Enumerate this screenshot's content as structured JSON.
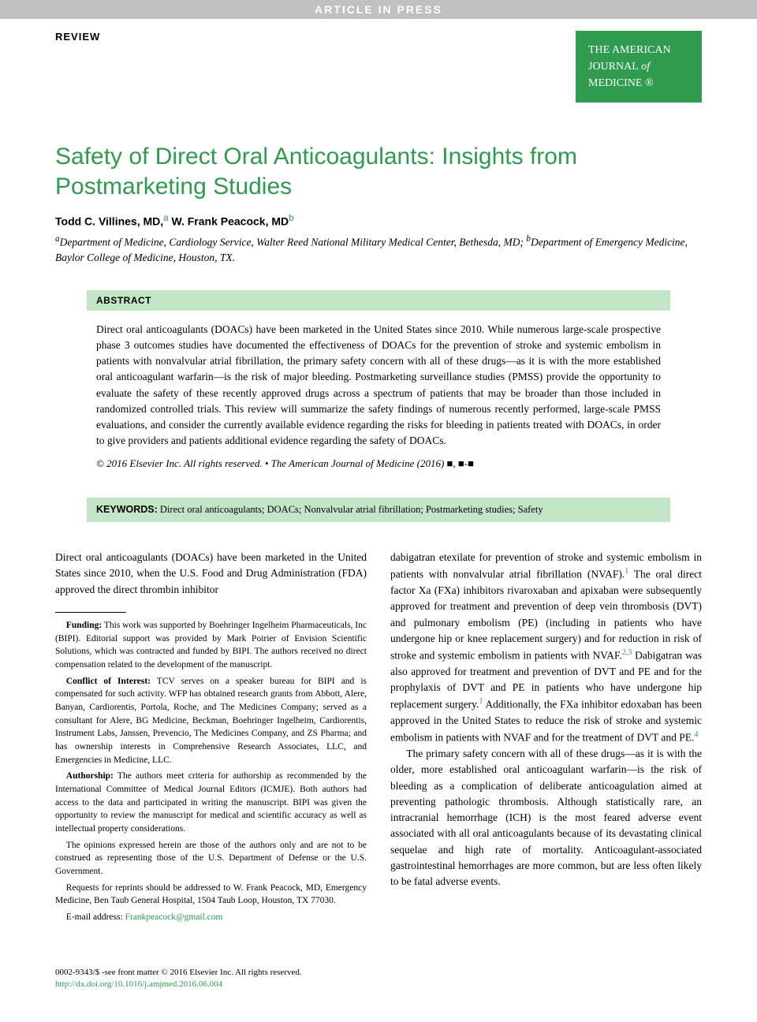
{
  "banner": "ARTICLE IN PRESS",
  "review_label": "REVIEW",
  "journal_badge": {
    "line1": "THE AMERICAN",
    "line2_a": "JOURNAL",
    "line2_b": "of",
    "line3": "MEDICINE",
    "reg": "®"
  },
  "title": "Safety of Direct Oral Anticoagulants: Insights from Postmarketing Studies",
  "authors": {
    "a1_name": "Todd C. Villines, MD,",
    "a1_sup": "a",
    "a2_name": "W. Frank Peacock, MD",
    "a2_sup": "b"
  },
  "affiliations": {
    "a_sup": "a",
    "a_text": "Department of Medicine, Cardiology Service, Walter Reed National Military Medical Center, Bethesda, MD;",
    "b_sup": "b",
    "b_text": "Department of Emergency Medicine, Baylor College of Medicine, Houston, TX."
  },
  "abstract": {
    "header": "ABSTRACT",
    "body": "Direct oral anticoagulants (DOACs) have been marketed in the United States since 2010. While numerous large-scale prospective phase 3 outcomes studies have documented the effectiveness of DOACs for the prevention of stroke and systemic embolism in patients with nonvalvular atrial fibrillation, the primary safety concern with all of these drugs—as it is with the more established oral anticoagulant warfarin—is the risk of major bleeding. Postmarketing surveillance studies (PMSS) provide the opportunity to evaluate the safety of these recently approved drugs across a spectrum of patients that may be broader than those included in randomized controlled trials. This review will summarize the safety findings of numerous recently performed, large-scale PMSS evaluations, and consider the currently available evidence regarding the risks for bleeding in patients treated with DOACs, in order to give providers and patients additional evidence regarding the safety of DOACs.",
    "copyright": "© 2016 Elsevier Inc. All rights reserved. • The American Journal of Medicine (2016) ■, ■-■"
  },
  "keywords": {
    "label": "KEYWORDS:",
    "text": "Direct oral anticoagulants; DOACs; Nonvalvular atrial fibrillation; Postmarketing studies; Safety"
  },
  "body": {
    "left_intro": "Direct oral anticoagulants (DOACs) have been marketed in the United States since 2010, when the U.S. Food and Drug Administration (FDA) approved the direct thrombin inhibitor",
    "right_p1_a": "dabigatran etexilate for prevention of stroke and systemic embolism in patients with nonvalvular atrial fibrillation (NVAF).",
    "right_p1_ref1": "1",
    "right_p1_b": " The oral direct factor Xa (FXa) inhibitors rivaroxaban and apixaban were subsequently approved for treatment and prevention of deep vein thrombosis (DVT) and pulmonary embolism (PE) (including in patients who have undergone hip or knee replacement surgery) and for reduction in risk of stroke and systemic embolism in patients with NVAF.",
    "right_p1_ref23": "2,3",
    "right_p1_c": " Dabigatran was also approved for treatment and prevention of DVT and PE and for the prophylaxis of DVT and PE in patients who have undergone hip replacement surgery.",
    "right_p1_ref1b": "1",
    "right_p1_d": " Additionally, the FXa inhibitor edoxaban has been approved in the United States to reduce the risk of stroke and systemic embolism in patients with NVAF and for the treatment of DVT and PE.",
    "right_p1_ref4": "4",
    "right_p2": "The primary safety concern with all of these drugs—as it is with the older, more established oral anticoagulant warfarin—is the risk of bleeding as a complication of deliberate anticoagulation aimed at preventing pathologic thrombosis. Although statistically rare, an intracranial hemorrhage (ICH) is the most feared adverse event associated with all oral anticoagulants because of its devastating clinical sequelae and high rate of mortality. Anticoagulant-associated gastrointestinal hemorrhages are more common, but are less often likely to be fatal adverse events."
  },
  "footnotes": {
    "funding_label": "Funding:",
    "funding": " This work was supported by Boehringer Ingelheim Pharmaceuticals, Inc (BIPI). Editorial support was provided by Mark Poirier of Envision Scientific Solutions, which was contracted and funded by BIPI. The authors received no direct compensation related to the development of the manuscript.",
    "conflict_label": "Conflict of Interest:",
    "conflict": " TCV serves on a speaker bureau for BIPI and is compensated for such activity. WFP has obtained research grants from Abbott, Alere, Banyan, Cardiorentis, Portola, Roche, and The Medicines Company; served as a consultant for Alere, BG Medicine, Beckman, Boehringer Ingelheim, Cardiorentis, Instrument Labs, Janssen, Prevencio, The Medicines Company, and ZS Pharma; and has ownership interests in Comprehensive Research Associates, LLC, and Emergencies in Medicine, LLC.",
    "authorship_label": "Authorship:",
    "authorship": " The authors meet criteria for authorship as recommended by the International Committee of Medical Journal Editors (ICMJE). Both authors had access to the data and participated in writing the manuscript. BIPI was given the opportunity to review the manuscript for medical and scientific accuracy as well as intellectual property considerations.",
    "opinions": "The opinions expressed herein are those of the authors only and are not to be construed as representing those of the U.S. Department of Defense or the U.S. Government.",
    "reprints": "Requests for reprints should be addressed to W. Frank Peacock, MD, Emergency Medicine, Ben Taub General Hospital, 1504 Taub Loop, Houston, TX 77030.",
    "email_label": "E-mail address: ",
    "email": "Frankpeacock@gmail.com"
  },
  "footer": {
    "line1": "0002-9343/$ -see front matter © 2016 Elsevier Inc. All rights reserved.",
    "doi": "http://dx.doi.org/10.1016/j.amjmed.2016.06.004"
  },
  "colors": {
    "green": "#2e9b4f",
    "abstract_bg": "#c3e6c8",
    "banner_bg": "#c0c0c0"
  }
}
